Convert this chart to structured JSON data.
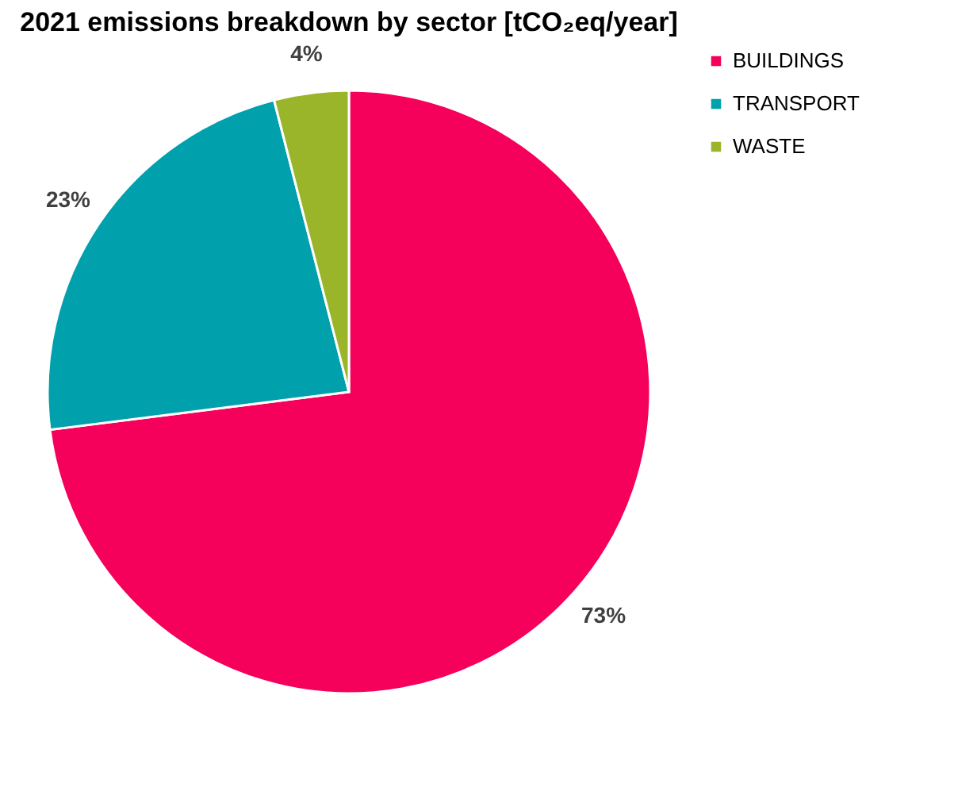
{
  "chart_data": {
    "type": "pie",
    "title": "2021 emissions breakdown by sector [tCO₂eq/year]",
    "categories": [
      "BUILDINGS",
      "TRANSPORT",
      "WASTE"
    ],
    "values": [
      73,
      23,
      4
    ],
    "colors": [
      "#f5005a",
      "#00a0ac",
      "#9bb52a"
    ],
    "value_labels": [
      "73%",
      "23%",
      "4%"
    ],
    "legend": "right"
  }
}
